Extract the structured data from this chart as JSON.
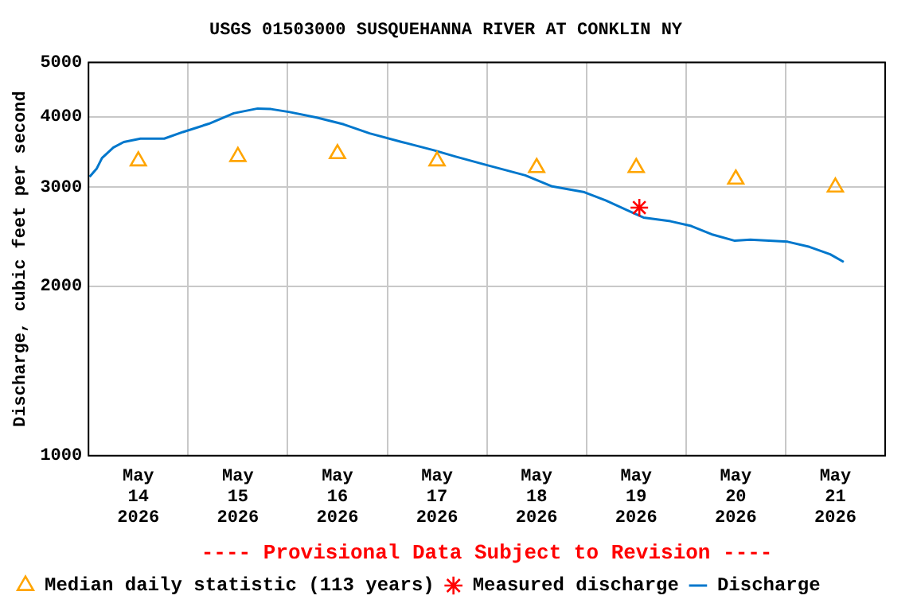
{
  "chart_data": {
    "type": "line",
    "title": "USGS 01503000 SUSQUEHANNA RIVER AT CONKLIN NY",
    "ylabel": "Discharge, cubic feet per second",
    "annotations": [
      "---- Provisional Data Subject to Revision ----"
    ],
    "log": "y",
    "grid": true,
    "legend": "bottom left",
    "xlim": [
      "2026-05-14T00:00",
      "2026-05-22T00:00"
    ],
    "xticks": [
      {
        "value": "2026-05-14T00:00",
        "label": null
      },
      {
        "value": "2026-05-14T12:00",
        "label": "May 14 2026"
      },
      {
        "value": "2026-05-15T00:00",
        "label": null
      },
      {
        "value": "2026-05-15T12:00",
        "label": "May 15 2026"
      },
      {
        "value": "2026-05-16T00:00",
        "label": null
      },
      {
        "value": "2026-05-16T12:00",
        "label": "May 16 2026"
      },
      {
        "value": "2026-05-17T00:00",
        "label": null
      },
      {
        "value": "2026-05-17T12:00",
        "label": "May 17 2026"
      },
      {
        "value": "2026-05-18T00:00",
        "label": null
      },
      {
        "value": "2026-05-18T12:00",
        "label": "May 18 2026"
      },
      {
        "value": "2026-05-19T00:00",
        "label": null
      },
      {
        "value": "2026-05-19T12:00",
        "label": "May 19 2026"
      },
      {
        "value": "2026-05-20T00:00",
        "label": null
      },
      {
        "value": "2026-05-20T12:00",
        "label": "May 20 2026"
      },
      {
        "value": "2026-05-21T00:00",
        "label": null
      },
      {
        "value": "2026-05-21T12:00",
        "label": "May 21 2026"
      },
      {
        "value": "2026-05-22T00:00",
        "label": null
      }
    ],
    "ylim": [
      1000,
      5000
    ],
    "yticks": [
      1000,
      2000,
      3000,
      4000,
      5000
    ],
    "series": [
      {
        "name": "Median daily statistic (113 years)",
        "type": "scatter",
        "marker": "triangle",
        "color": "#ffa500",
        "x": [
          "2026-05-14T12:00",
          "2026-05-15T12:00",
          "2026-05-16T12:00",
          "2026-05-17T12:00",
          "2026-05-18T12:00",
          "2026-05-19T12:00",
          "2026-05-20T12:00",
          "2026-05-21T12:00"
        ],
        "values": [
          3340,
          3400,
          3440,
          3340,
          3250,
          3250,
          3100,
          3000
        ]
      },
      {
        "name": "Measured discharge",
        "type": "scatter",
        "marker": "cross",
        "color": "#ff0000",
        "x": [
          "2026-05-19T12:45"
        ],
        "values": [
          2760
        ]
      },
      {
        "name": "Discharge",
        "marker": "none",
        "line_style": "solid",
        "color": "#0077cc",
        "x": [
          "2026-05-14T00:15",
          "2026-05-14T02:00",
          "2026-05-14T03:15",
          "2026-05-14T06:00",
          "2026-05-14T08:30",
          "2026-05-14T12:30",
          "2026-05-14T18:15",
          "2026-05-14T22:45",
          "2026-05-15T05:00",
          "2026-05-15T11:00",
          "2026-05-15T16:45",
          "2026-05-15T20:00",
          "2026-05-16T00:30",
          "2026-05-16T07:00",
          "2026-05-16T13:30",
          "2026-05-16T19:45",
          "2026-05-17T03:30",
          "2026-05-17T11:15",
          "2026-05-17T16:30",
          "2026-05-18T00:15",
          "2026-05-18T09:15",
          "2026-05-18T15:45",
          "2026-05-18T23:30",
          "2026-05-19T04:45",
          "2026-05-19T11:15",
          "2026-05-19T13:45",
          "2026-05-19T20:15",
          "2026-05-20T01:15",
          "2026-05-20T06:30",
          "2026-05-20T11:45",
          "2026-05-20T15:30",
          "2026-05-21T00:30",
          "2026-05-21T05:45",
          "2026-05-21T10:45",
          "2026-05-21T14:00"
        ],
        "values": [
          3130,
          3240,
          3380,
          3530,
          3610,
          3660,
          3660,
          3760,
          3890,
          4060,
          4140,
          4130,
          4080,
          3990,
          3880,
          3740,
          3610,
          3490,
          3400,
          3280,
          3150,
          3010,
          2940,
          2840,
          2700,
          2650,
          2610,
          2560,
          2470,
          2410,
          2420,
          2400,
          2350,
          2280,
          2210
        ]
      }
    ]
  }
}
